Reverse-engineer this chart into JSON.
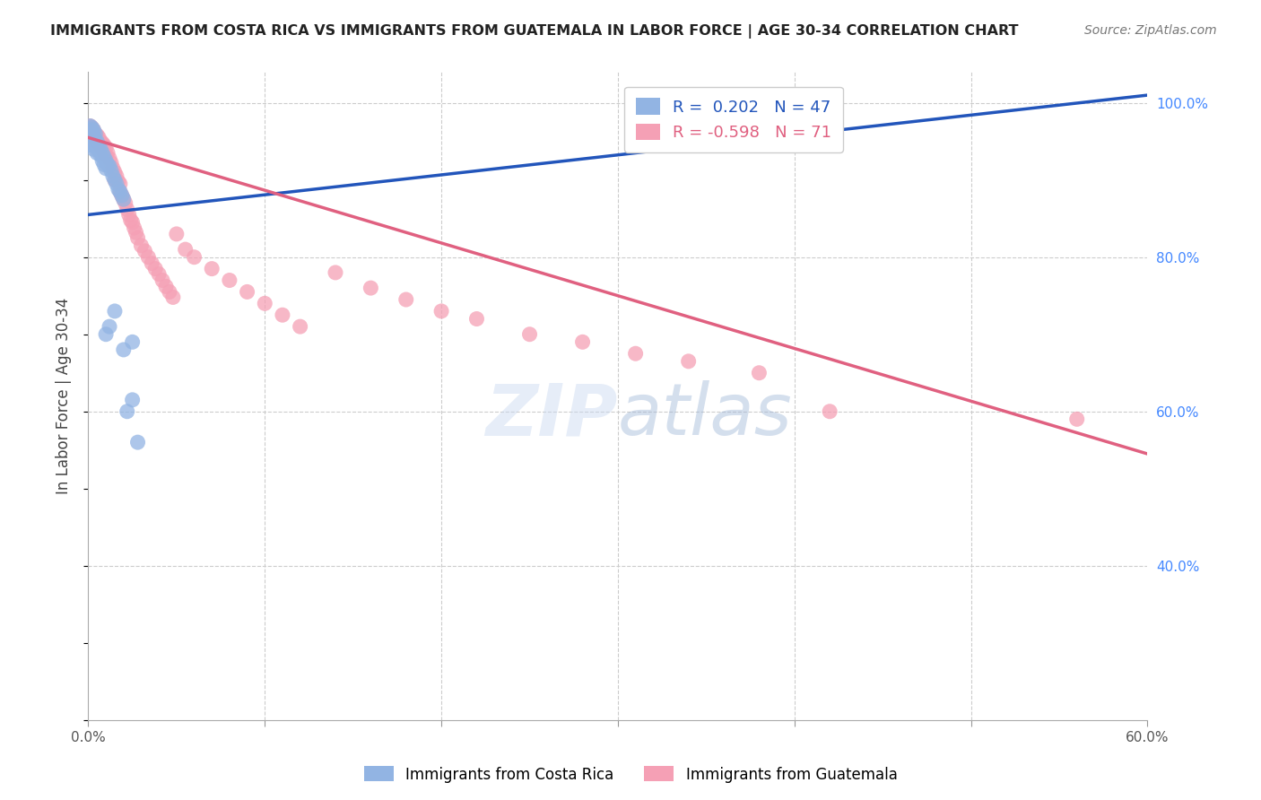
{
  "title": "IMMIGRANTS FROM COSTA RICA VS IMMIGRANTS FROM GUATEMALA IN LABOR FORCE | AGE 30-34 CORRELATION CHART",
  "source": "Source: ZipAtlas.com",
  "ylabel": "In Labor Force | Age 30-34",
  "xmin": 0.0,
  "xmax": 0.6,
  "ymin": 0.2,
  "ymax": 1.04,
  "legend1_label": "Immigrants from Costa Rica",
  "legend2_label": "Immigrants from Guatemala",
  "cr_color": "#92b4e3",
  "gt_color": "#f5a0b5",
  "cr_line_color": "#2255bb",
  "gt_line_color": "#e06080",
  "cr_R": 0.202,
  "cr_N": 47,
  "gt_R": -0.598,
  "gt_N": 71,
  "cr_line_x0": 0.0,
  "cr_line_y0": 0.855,
  "cr_line_x1": 0.6,
  "cr_line_y1": 1.01,
  "gt_line_x0": 0.0,
  "gt_line_y0": 0.955,
  "gt_line_x1": 0.6,
  "gt_line_y1": 0.545,
  "cr_x": [
    0.001,
    0.001,
    0.001,
    0.001,
    0.001,
    0.002,
    0.002,
    0.002,
    0.002,
    0.003,
    0.003,
    0.003,
    0.003,
    0.004,
    0.004,
    0.004,
    0.005,
    0.005,
    0.005,
    0.006,
    0.006,
    0.007,
    0.007,
    0.008,
    0.008,
    0.009,
    0.009,
    0.01,
    0.01,
    0.011,
    0.012,
    0.013,
    0.014,
    0.015,
    0.016,
    0.017,
    0.018,
    0.019,
    0.02,
    0.022,
    0.025,
    0.028,
    0.01,
    0.012,
    0.015,
    0.02,
    0.025
  ],
  "cr_y": [
    0.97,
    0.965,
    0.96,
    0.955,
    0.95,
    0.968,
    0.96,
    0.955,
    0.945,
    0.965,
    0.958,
    0.95,
    0.94,
    0.96,
    0.952,
    0.945,
    0.95,
    0.942,
    0.935,
    0.945,
    0.938,
    0.94,
    0.932,
    0.935,
    0.925,
    0.93,
    0.92,
    0.925,
    0.915,
    0.92,
    0.918,
    0.912,
    0.905,
    0.9,
    0.895,
    0.888,
    0.885,
    0.88,
    0.875,
    0.6,
    0.615,
    0.56,
    0.7,
    0.71,
    0.73,
    0.68,
    0.69
  ],
  "gt_x": [
    0.001,
    0.001,
    0.002,
    0.002,
    0.003,
    0.003,
    0.004,
    0.004,
    0.005,
    0.005,
    0.006,
    0.006,
    0.007,
    0.007,
    0.008,
    0.008,
    0.009,
    0.009,
    0.01,
    0.01,
    0.011,
    0.012,
    0.013,
    0.014,
    0.015,
    0.015,
    0.016,
    0.017,
    0.018,
    0.018,
    0.019,
    0.02,
    0.021,
    0.022,
    0.023,
    0.024,
    0.025,
    0.026,
    0.027,
    0.028,
    0.03,
    0.032,
    0.034,
    0.036,
    0.038,
    0.04,
    0.042,
    0.044,
    0.046,
    0.048,
    0.05,
    0.055,
    0.06,
    0.07,
    0.08,
    0.09,
    0.1,
    0.11,
    0.12,
    0.14,
    0.16,
    0.18,
    0.2,
    0.22,
    0.25,
    0.28,
    0.31,
    0.34,
    0.38,
    0.42,
    0.56
  ],
  "gt_y": [
    0.97,
    0.965,
    0.968,
    0.96,
    0.965,
    0.958,
    0.96,
    0.952,
    0.958,
    0.95,
    0.955,
    0.948,
    0.95,
    0.942,
    0.948,
    0.94,
    0.945,
    0.935,
    0.942,
    0.932,
    0.935,
    0.928,
    0.922,
    0.915,
    0.91,
    0.9,
    0.905,
    0.898,
    0.895,
    0.885,
    0.88,
    0.875,
    0.87,
    0.862,
    0.855,
    0.848,
    0.845,
    0.838,
    0.832,
    0.825,
    0.815,
    0.808,
    0.8,
    0.792,
    0.785,
    0.778,
    0.77,
    0.762,
    0.755,
    0.748,
    0.83,
    0.81,
    0.8,
    0.785,
    0.77,
    0.755,
    0.74,
    0.725,
    0.71,
    0.78,
    0.76,
    0.745,
    0.73,
    0.72,
    0.7,
    0.69,
    0.675,
    0.665,
    0.65,
    0.6,
    0.59
  ]
}
